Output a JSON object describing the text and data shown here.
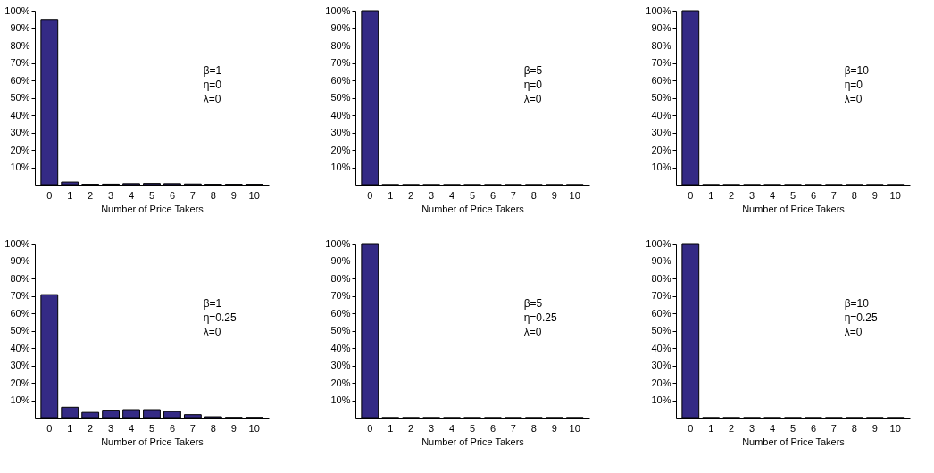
{
  "chart_data": [
    {
      "type": "bar",
      "categories": [
        "0",
        "1",
        "2",
        "3",
        "4",
        "5",
        "6",
        "7",
        "8",
        "9",
        "10"
      ],
      "values": [
        95,
        1.5,
        0.2,
        0.3,
        0.6,
        0.7,
        0.6,
        0.4,
        0.2,
        0.2,
        0.2
      ],
      "color": "#342a85",
      "xlabel": "Number of Price Takers",
      "ylim": [
        0,
        100
      ],
      "yticks": [
        {
          "value": 10,
          "label": "10%"
        },
        {
          "value": 20,
          "label": "20%"
        },
        {
          "value": 30,
          "label": "30%"
        },
        {
          "value": 40,
          "label": "40%"
        },
        {
          "value": 50,
          "label": "50%"
        },
        {
          "value": 60,
          "label": "60%"
        },
        {
          "value": 70,
          "label": "70%"
        },
        {
          "value": 80,
          "label": "80%"
        },
        {
          "value": 90,
          "label": "90%"
        },
        {
          "value": 100,
          "label": "100%"
        }
      ],
      "annotations": [
        "β=1",
        "η=0",
        "λ=0"
      ],
      "grid": false
    },
    {
      "type": "bar",
      "categories": [
        "0",
        "1",
        "2",
        "3",
        "4",
        "5",
        "6",
        "7",
        "8",
        "9",
        "10"
      ],
      "values": [
        100,
        0,
        0,
        0,
        0,
        0,
        0,
        0,
        0,
        0,
        0
      ],
      "color": "#342a85",
      "xlabel": "Number of Price Takers",
      "ylim": [
        0,
        100
      ],
      "yticks": [
        {
          "value": 10,
          "label": "10%"
        },
        {
          "value": 20,
          "label": "20%"
        },
        {
          "value": 30,
          "label": "30%"
        },
        {
          "value": 40,
          "label": "40%"
        },
        {
          "value": 50,
          "label": "50%"
        },
        {
          "value": 60,
          "label": "60%"
        },
        {
          "value": 70,
          "label": "70%"
        },
        {
          "value": 80,
          "label": "80%"
        },
        {
          "value": 90,
          "label": "90%"
        },
        {
          "value": 100,
          "label": "100%"
        }
      ],
      "annotations": [
        "β=5",
        "η=0",
        "λ=0"
      ],
      "grid": false
    },
    {
      "type": "bar",
      "categories": [
        "0",
        "1",
        "2",
        "3",
        "4",
        "5",
        "6",
        "7",
        "8",
        "9",
        "10"
      ],
      "values": [
        100,
        0,
        0,
        0,
        0,
        0,
        0,
        0,
        0,
        0,
        0
      ],
      "color": "#342a85",
      "xlabel": "Number of Price Takers",
      "ylim": [
        0,
        100
      ],
      "yticks": [
        {
          "value": 10,
          "label": "10%"
        },
        {
          "value": 20,
          "label": "20%"
        },
        {
          "value": 30,
          "label": "30%"
        },
        {
          "value": 40,
          "label": "40%"
        },
        {
          "value": 50,
          "label": "50%"
        },
        {
          "value": 60,
          "label": "60%"
        },
        {
          "value": 70,
          "label": "70%"
        },
        {
          "value": 80,
          "label": "80%"
        },
        {
          "value": 90,
          "label": "90%"
        },
        {
          "value": 100,
          "label": "100%"
        }
      ],
      "annotations": [
        "β=10",
        "η=0",
        "λ=0"
      ],
      "grid": false
    },
    {
      "type": "bar",
      "categories": [
        "0",
        "1",
        "2",
        "3",
        "4",
        "5",
        "6",
        "7",
        "8",
        "9",
        "10"
      ],
      "values": [
        70.7,
        6,
        3,
        4.3,
        4.6,
        4.6,
        3.5,
        1.7,
        0.5,
        0.1,
        0.1
      ],
      "color": "#342a85",
      "xlabel": "Number of Price Takers",
      "ylim": [
        0,
        100
      ],
      "yticks": [
        {
          "value": 10,
          "label": "10%"
        },
        {
          "value": 20,
          "label": "20%"
        },
        {
          "value": 30,
          "label": "30%"
        },
        {
          "value": 40,
          "label": "40%"
        },
        {
          "value": 50,
          "label": "50%"
        },
        {
          "value": 60,
          "label": "60%"
        },
        {
          "value": 70,
          "label": "70%"
        },
        {
          "value": 80,
          "label": "80%"
        },
        {
          "value": 90,
          "label": "90%"
        },
        {
          "value": 100,
          "label": "100%"
        }
      ],
      "annotations": [
        "β=1",
        "η=0.25",
        "λ=0"
      ],
      "grid": false
    },
    {
      "type": "bar",
      "categories": [
        "0",
        "1",
        "2",
        "3",
        "4",
        "5",
        "6",
        "7",
        "8",
        "9",
        "10"
      ],
      "values": [
        100,
        0,
        0,
        0,
        0,
        0,
        0,
        0,
        0,
        0,
        0
      ],
      "color": "#342a85",
      "xlabel": "Number of Price Takers",
      "ylim": [
        0,
        100
      ],
      "yticks": [
        {
          "value": 10,
          "label": "10%"
        },
        {
          "value": 20,
          "label": "20%"
        },
        {
          "value": 30,
          "label": "30%"
        },
        {
          "value": 40,
          "label": "40%"
        },
        {
          "value": 50,
          "label": "50%"
        },
        {
          "value": 60,
          "label": "60%"
        },
        {
          "value": 70,
          "label": "70%"
        },
        {
          "value": 80,
          "label": "80%"
        },
        {
          "value": 90,
          "label": "90%"
        },
        {
          "value": 100,
          "label": "100%"
        }
      ],
      "annotations": [
        "β=5",
        "η=0.25",
        "λ=0"
      ],
      "grid": false
    },
    {
      "type": "bar",
      "categories": [
        "0",
        "1",
        "2",
        "3",
        "4",
        "5",
        "6",
        "7",
        "8",
        "9",
        "10"
      ],
      "values": [
        100,
        0,
        0,
        0,
        0,
        0,
        0,
        0,
        0,
        0,
        0
      ],
      "color": "#342a85",
      "xlabel": "Number of Price Takers",
      "ylim": [
        0,
        100
      ],
      "yticks": [
        {
          "value": 10,
          "label": "10%"
        },
        {
          "value": 20,
          "label": "20%"
        },
        {
          "value": 30,
          "label": "30%"
        },
        {
          "value": 40,
          "label": "40%"
        },
        {
          "value": 50,
          "label": "50%"
        },
        {
          "value": 60,
          "label": "60%"
        },
        {
          "value": 70,
          "label": "70%"
        },
        {
          "value": 80,
          "label": "80%"
        },
        {
          "value": 90,
          "label": "90%"
        },
        {
          "value": 100,
          "label": "100%"
        }
      ],
      "annotations": [
        "β=10",
        "η=0.25",
        "λ=0"
      ],
      "grid": false
    }
  ]
}
